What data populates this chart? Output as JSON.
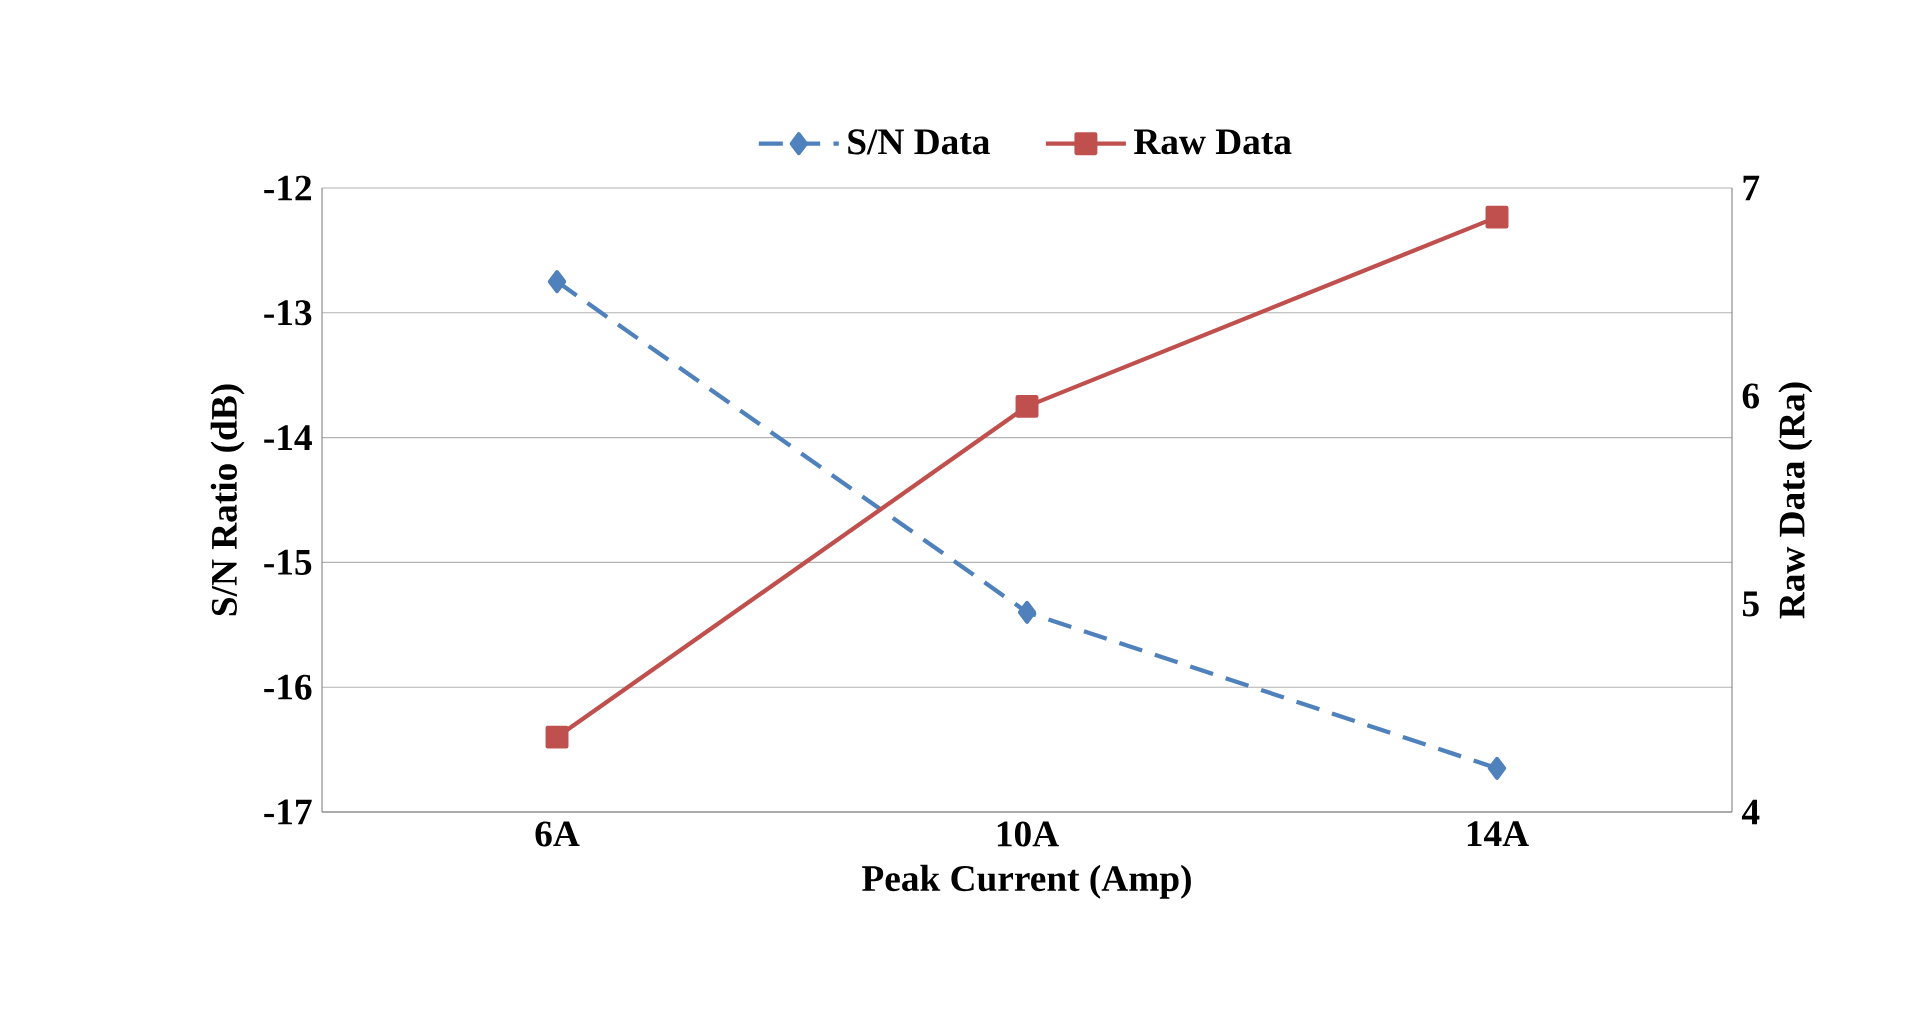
{
  "chart_data": {
    "type": "line",
    "xlabel": "Peak Current (Amp)",
    "ylabel": "S/N Ratio (dB)",
    "y2label": "Raw Data (Ra)",
    "categories": [
      "6A",
      "10A",
      "14A"
    ],
    "series": [
      {
        "name": "S/N Data",
        "color": "#4f81bd",
        "values": [
          -12.75,
          -15.4,
          -16.65
        ],
        "marker": "diamond",
        "line_style": "dashed"
      },
      {
        "name": "Raw Data",
        "color": "#c0504d",
        "values": [
          4.36,
          5.95,
          6.86
        ],
        "marker": "square",
        "line_style": "solid",
        "axis": "y2"
      }
    ],
    "ylim": [
      -17,
      -12
    ],
    "yticks": [
      -17,
      -16,
      -15,
      -14,
      -13,
      -12
    ],
    "y2lim": [
      4,
      7
    ],
    "y2ticks": [
      4,
      5,
      6,
      7
    ],
    "grid": "y",
    "legend": "top"
  }
}
